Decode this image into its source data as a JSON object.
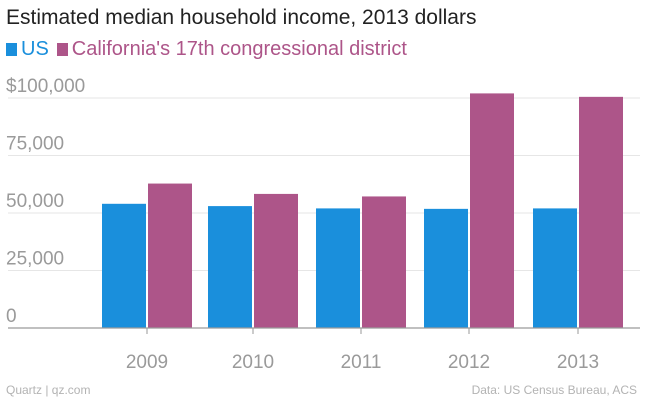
{
  "chart_data": {
    "type": "bar",
    "title": "Estimated median household income, 2013 dollars",
    "categories": [
      "2009",
      "2010",
      "2011",
      "2012",
      "2013"
    ],
    "series": [
      {
        "name": "US",
        "color": "#1a8fdc",
        "values": [
          54000,
          53000,
          52000,
          51800,
          52000
        ]
      },
      {
        "name": "California's 17th congressional district",
        "color": "#ad5589",
        "values": [
          62800,
          58300,
          57200,
          102000,
          100500
        ]
      }
    ],
    "yticks": [
      "$100,000",
      "75,000",
      "50,000",
      "25,000",
      "0"
    ],
    "ytick_values": [
      100000,
      75000,
      50000,
      25000,
      0
    ],
    "ylim": [
      0,
      105000
    ],
    "xlabel": "",
    "ylabel": "",
    "grid": true,
    "legend": "top-left"
  },
  "footer": {
    "source_left": "Quartz | qz.com",
    "source_right": "Data: US Census Bureau, ACS"
  }
}
